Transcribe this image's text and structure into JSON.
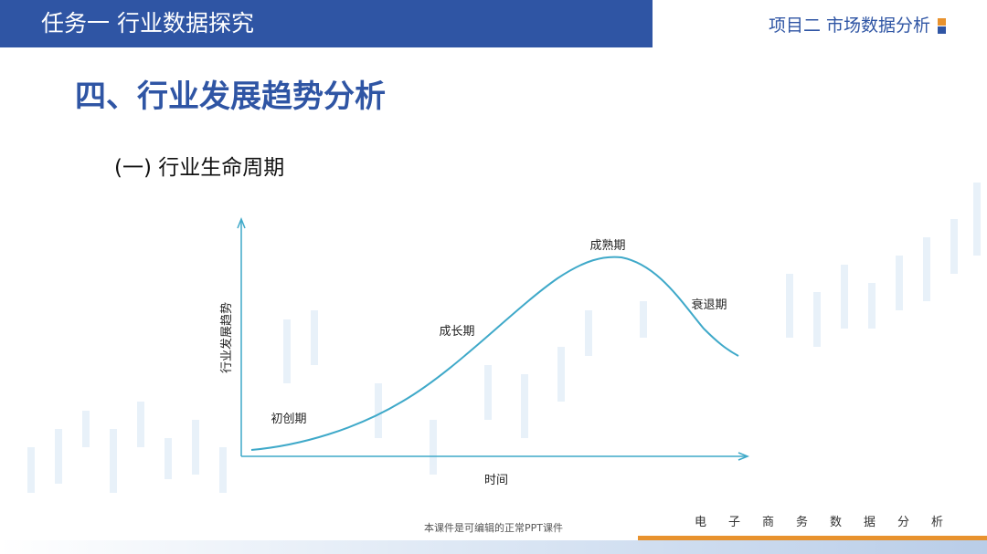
{
  "header": {
    "task": "任务一 行业数据探究",
    "project": "项目二 市场数据分析"
  },
  "title": "四、行业发展趋势分析",
  "subtitle": "(一) 行业生命周期",
  "diagram": {
    "y_axis_label": "行业发展趋势",
    "x_axis_label": "时间",
    "stages": [
      "初创期",
      "成长期",
      "成熟期",
      "衰退期"
    ]
  },
  "footer": {
    "note": "本课件是可编辑的正常PPT课件",
    "course": "电子商务数据分析"
  }
}
